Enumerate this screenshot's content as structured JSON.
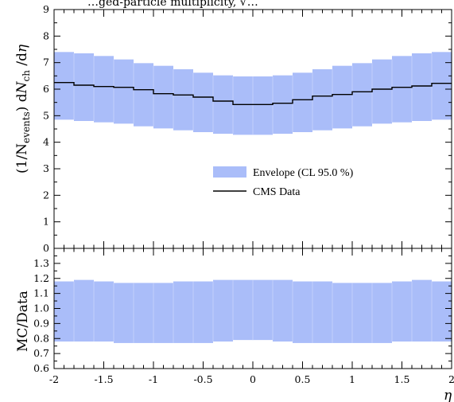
{
  "chart_data": [
    {
      "type": "area",
      "title": "…ged-particle multiplicity, √…",
      "xlabel": "η",
      "ylabel": "(1/N_events) dN_ch / dη",
      "ylabel_parts": {
        "open": "(1/N",
        "sub1": "events",
        "mid": ") d",
        "italicN": "N",
        "sub2": "ch",
        "end": " /d",
        "italicEta": "η"
      },
      "xlim": [
        -2,
        2
      ],
      "ylim": [
        0,
        9
      ],
      "y_ticks": [
        "0",
        "1",
        "2",
        "3",
        "4",
        "5",
        "6",
        "7",
        "8",
        "9"
      ],
      "bin_edges": [
        -2.0,
        -1.8,
        -1.6,
        -1.4,
        -1.2,
        -1.0,
        -0.8,
        -0.6,
        -0.4,
        -0.2,
        0.0,
        0.2,
        0.4,
        0.6,
        0.8,
        1.0,
        1.2,
        1.4,
        1.6,
        1.8,
        2.0
      ],
      "series": [
        {
          "name": "Envelope (CL 95.0 %)",
          "color": "#aabdf9",
          "upper": [
            7.4,
            7.35,
            7.25,
            7.12,
            6.98,
            6.88,
            6.75,
            6.62,
            6.52,
            6.48,
            6.48,
            6.52,
            6.62,
            6.75,
            6.88,
            6.98,
            7.12,
            7.25,
            7.35,
            7.4
          ],
          "lower": [
            4.85,
            4.8,
            4.75,
            4.7,
            4.6,
            4.52,
            4.45,
            4.38,
            4.32,
            4.28,
            4.28,
            4.32,
            4.38,
            4.45,
            4.52,
            4.6,
            4.7,
            4.75,
            4.8,
            4.85
          ]
        },
        {
          "name": "CMS Data",
          "color": "#000000",
          "values": [
            6.25,
            6.15,
            6.1,
            6.07,
            5.98,
            5.83,
            5.78,
            5.7,
            5.55,
            5.42,
            5.42,
            5.47,
            5.6,
            5.74,
            5.8,
            5.9,
            6.0,
            6.07,
            6.12,
            6.22
          ]
        }
      ],
      "legend": {
        "position": "lower-right"
      }
    },
    {
      "type": "area",
      "title": "",
      "xlabel": "η",
      "ylabel": "MC/Data",
      "xlim": [
        -2,
        2
      ],
      "ylim": [
        0.6,
        1.4
      ],
      "y_ticks": [
        "0.6",
        "0.7",
        "0.8",
        "0.9",
        "1.0",
        "1.1",
        "1.2",
        "1.3"
      ],
      "x_ticks": [
        "-2",
        "-1.5",
        "-1",
        "-0.5",
        "0",
        "0.5",
        "1",
        "1.5",
        "2"
      ],
      "series": [
        {
          "name": "Envelope (CL 95.0 %)",
          "color": "#aabdf9",
          "upper": [
            1.18,
            1.19,
            1.18,
            1.17,
            1.17,
            1.17,
            1.18,
            1.18,
            1.19,
            1.19,
            1.19,
            1.19,
            1.18,
            1.18,
            1.17,
            1.17,
            1.17,
            1.18,
            1.19,
            1.18
          ],
          "lower": [
            0.78,
            0.78,
            0.78,
            0.77,
            0.77,
            0.77,
            0.77,
            0.77,
            0.78,
            0.79,
            0.79,
            0.78,
            0.77,
            0.77,
            0.77,
            0.77,
            0.77,
            0.78,
            0.78,
            0.78
          ]
        }
      ]
    }
  ]
}
